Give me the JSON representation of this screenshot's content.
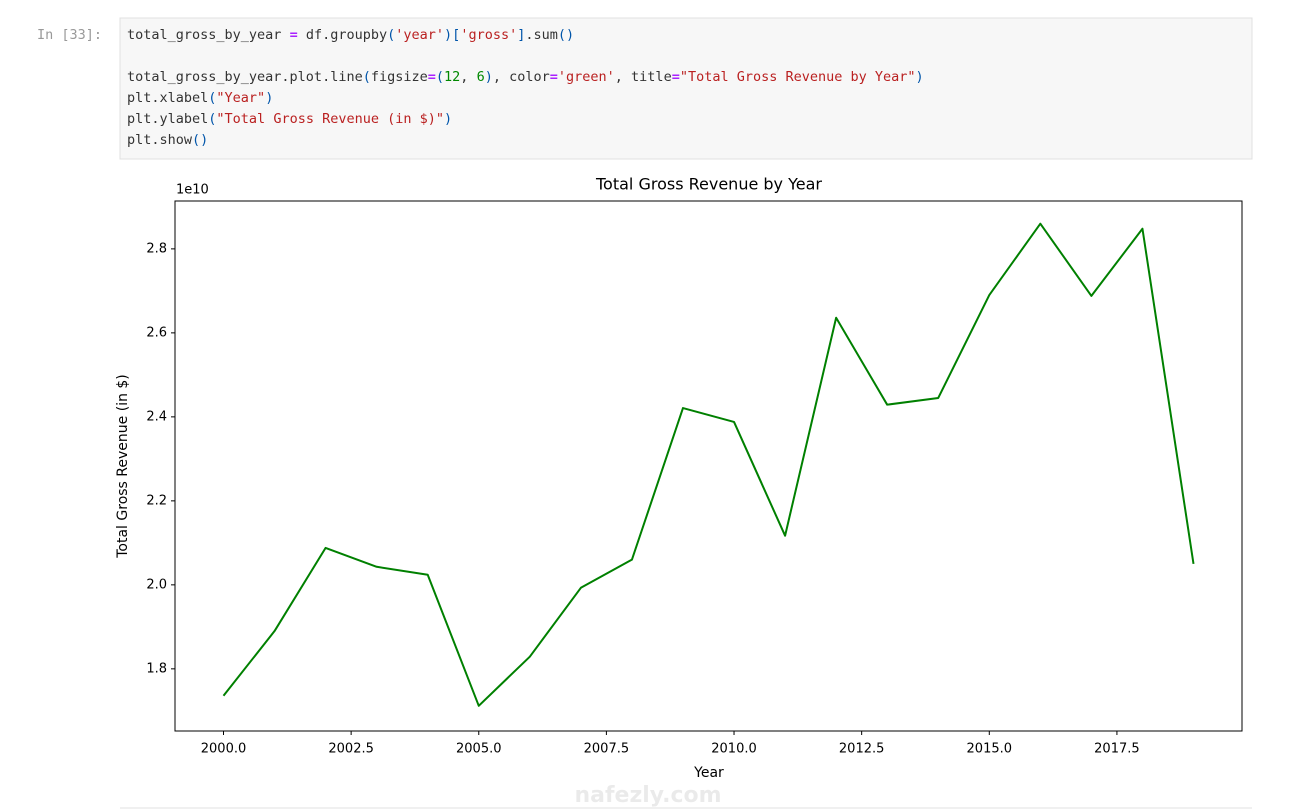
{
  "prompt": "In [33]:",
  "code": [
    "total_gross_by_year = df.groupby('year')['gross'].sum()",
    "",
    "total_gross_by_year.plot.line(figsize=(12, 6), color='green', title=\"Total Gross Revenue by Year\")",
    "plt.xlabel(\"Year\")",
    "plt.ylabel(\"Total Gross Revenue (in $)\")",
    "plt.show()"
  ],
  "watermark": "nafezly.com",
  "chart_data": {
    "type": "line",
    "title": "Total Gross Revenue by Year",
    "xlabel": "Year",
    "ylabel": "Total Gross Revenue (in $)",
    "y_offset_text": "1e10",
    "x": [
      2000,
      2001,
      2002,
      2003,
      2004,
      2005,
      2006,
      2007,
      2008,
      2009,
      2010,
      2011,
      2012,
      2013,
      2014,
      2015,
      2016,
      2017,
      2018,
      2019
    ],
    "series": [
      {
        "name": "gross",
        "color": "green",
        "values": [
          1.736,
          1.89,
          2.088,
          2.043,
          2.024,
          1.712,
          1.829,
          1.993,
          2.06,
          2.421,
          2.388,
          2.117,
          2.636,
          2.429,
          2.445,
          2.69,
          2.86,
          2.688,
          2.848,
          2.05
        ]
      }
    ],
    "xlim": [
      1999.05,
      2019.95
    ],
    "ylim": [
      1.652,
      2.914
    ],
    "xticks": [
      {
        "value": 2000,
        "label": "2000.0"
      },
      {
        "value": 2002.5,
        "label": "2002.5"
      },
      {
        "value": 2005,
        "label": "2005.0"
      },
      {
        "value": 2007.5,
        "label": "2007.5"
      },
      {
        "value": 2010,
        "label": "2010.0"
      },
      {
        "value": 2012.5,
        "label": "2012.5"
      },
      {
        "value": 2015,
        "label": "2015.0"
      },
      {
        "value": 2017.5,
        "label": "2017.5"
      }
    ],
    "yticks": [
      1.8,
      {
        "value": 2.0,
        "label": "2.0"
      },
      2.2,
      2.4,
      2.6,
      2.8
    ],
    "grid": false
  }
}
